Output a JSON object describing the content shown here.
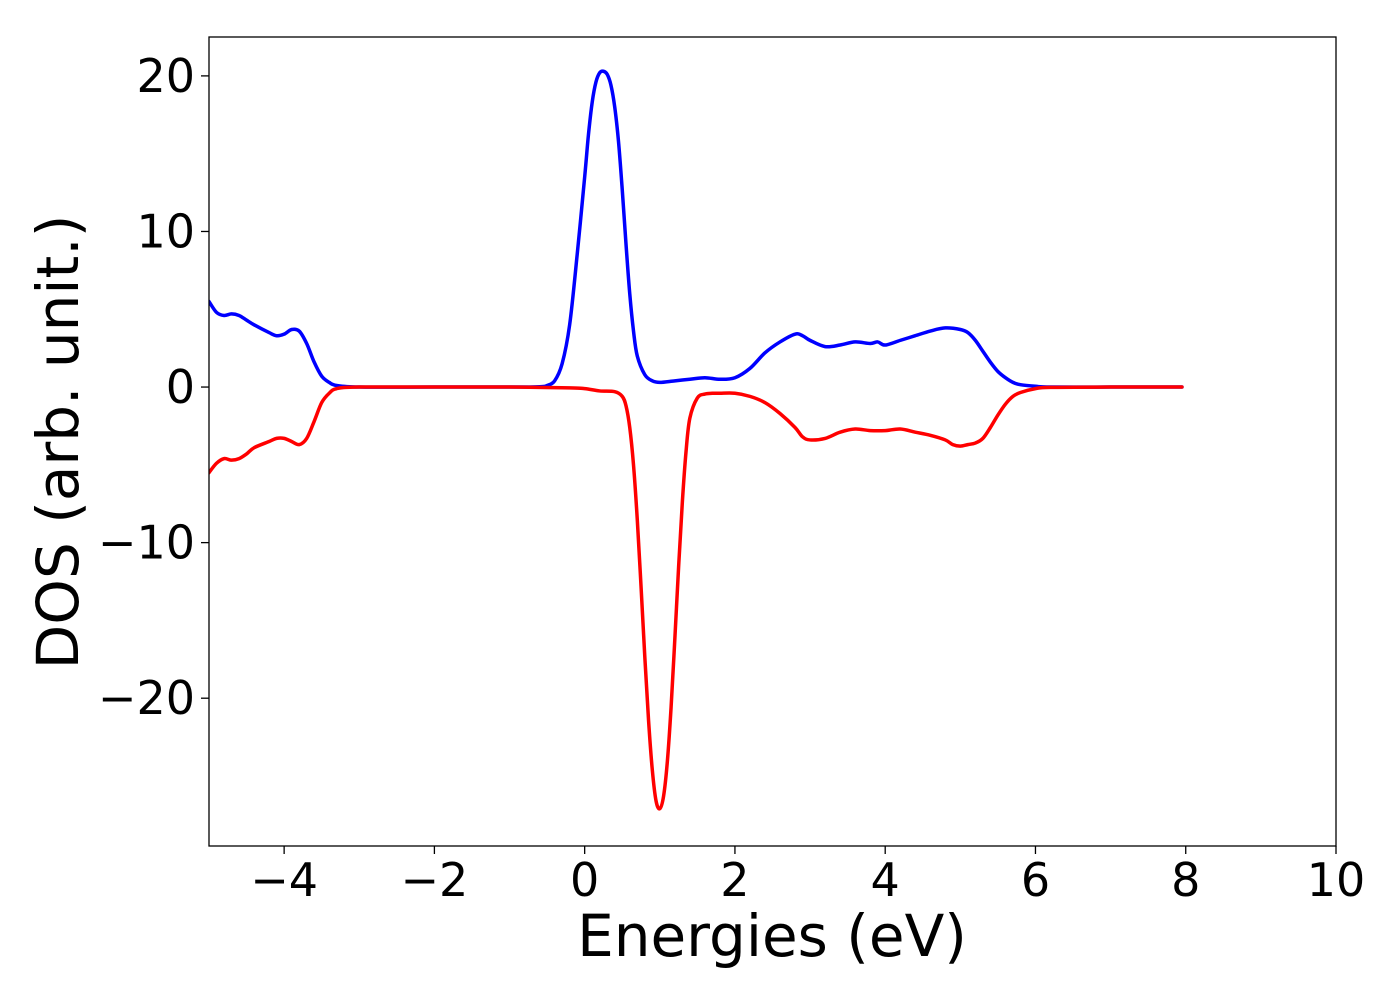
{
  "chart_data": {
    "type": "line",
    "title": "",
    "xlabel": "Energies (eV)",
    "ylabel": "DOS (arb. unit.)",
    "xlim": [
      -5,
      10
    ],
    "ylim": [
      -29.5,
      22.5
    ],
    "xticks": [
      -4,
      -2,
      0,
      2,
      4,
      6,
      8,
      10
    ],
    "xtick_labels": [
      "−4",
      "−2",
      "0",
      "2",
      "4",
      "6",
      "8",
      "10"
    ],
    "yticks": [
      20,
      10,
      0,
      -10,
      -20
    ],
    "ytick_labels": [
      "20",
      "10",
      "0",
      "−10",
      "−20"
    ],
    "grid": false,
    "legend": "none",
    "series": [
      {
        "color": "#0000ff",
        "x": [
          -5.0,
          -4.9,
          -4.8,
          -4.7,
          -4.6,
          -4.5,
          -4.4,
          -4.2,
          -4.1,
          -4.0,
          -3.9,
          -3.8,
          -3.7,
          -3.6,
          -3.5,
          -3.4,
          -3.3,
          -3.0,
          -2.0,
          -1.0,
          -0.6,
          -0.5,
          -0.4,
          -0.3,
          -0.2,
          -0.1,
          0.0,
          0.05,
          0.1,
          0.15,
          0.2,
          0.25,
          0.3,
          0.35,
          0.4,
          0.45,
          0.5,
          0.55,
          0.6,
          0.65,
          0.7,
          0.8,
          0.9,
          1.0,
          1.2,
          1.4,
          1.6,
          1.8,
          2.0,
          2.2,
          2.4,
          2.6,
          2.8,
          2.9,
          3.0,
          3.2,
          3.4,
          3.6,
          3.8,
          3.9,
          4.0,
          4.2,
          4.4,
          4.6,
          4.8,
          5.0,
          5.1,
          5.2,
          5.3,
          5.4,
          5.5,
          5.6,
          5.7,
          5.8,
          6.0,
          6.2,
          7.0,
          7.95
        ],
        "y": [
          5.5,
          4.8,
          4.6,
          4.7,
          4.6,
          4.3,
          4.0,
          3.5,
          3.3,
          3.4,
          3.7,
          3.6,
          2.8,
          1.6,
          0.7,
          0.3,
          0.1,
          0.0,
          0.0,
          0.0,
          0.02,
          0.1,
          0.4,
          1.5,
          4.0,
          8.5,
          13.5,
          16.2,
          18.3,
          19.6,
          20.2,
          20.3,
          20.1,
          19.4,
          18.0,
          15.8,
          12.7,
          9.2,
          6.0,
          3.6,
          2.0,
          0.8,
          0.4,
          0.3,
          0.4,
          0.5,
          0.6,
          0.5,
          0.6,
          1.2,
          2.2,
          2.9,
          3.4,
          3.3,
          3.0,
          2.6,
          2.7,
          2.9,
          2.8,
          2.9,
          2.7,
          3.0,
          3.3,
          3.6,
          3.8,
          3.7,
          3.5,
          3.0,
          2.3,
          1.6,
          1.0,
          0.6,
          0.3,
          0.15,
          0.05,
          0.0,
          0.0,
          0.0
        ]
      },
      {
        "color": "#ff0000",
        "x": [
          -5.0,
          -4.9,
          -4.8,
          -4.7,
          -4.6,
          -4.5,
          -4.4,
          -4.2,
          -4.1,
          -4.0,
          -3.9,
          -3.8,
          -3.7,
          -3.6,
          -3.5,
          -3.4,
          -3.3,
          -3.0,
          -2.0,
          -1.0,
          -0.2,
          0.0,
          0.2,
          0.4,
          0.5,
          0.55,
          0.6,
          0.65,
          0.7,
          0.75,
          0.8,
          0.85,
          0.9,
          0.95,
          1.0,
          1.05,
          1.1,
          1.15,
          1.2,
          1.25,
          1.3,
          1.35,
          1.4,
          1.5,
          1.6,
          1.7,
          1.8,
          2.0,
          2.2,
          2.4,
          2.6,
          2.8,
          2.9,
          3.0,
          3.2,
          3.4,
          3.6,
          3.8,
          4.0,
          4.2,
          4.4,
          4.6,
          4.8,
          4.9,
          5.0,
          5.1,
          5.2,
          5.3,
          5.4,
          5.5,
          5.6,
          5.7,
          5.8,
          6.0,
          6.2,
          7.0,
          7.95
        ],
        "y": [
          -5.5,
          -4.9,
          -4.6,
          -4.7,
          -4.6,
          -4.3,
          -3.9,
          -3.5,
          -3.3,
          -3.3,
          -3.5,
          -3.7,
          -3.3,
          -2.2,
          -1.0,
          -0.4,
          -0.1,
          0.0,
          0.0,
          0.0,
          -0.05,
          -0.1,
          -0.25,
          -0.3,
          -0.6,
          -1.2,
          -2.6,
          -5.0,
          -8.5,
          -12.8,
          -17.3,
          -21.4,
          -24.6,
          -26.6,
          -27.1,
          -26.3,
          -24.1,
          -20.6,
          -16.2,
          -11.6,
          -7.4,
          -4.1,
          -2.0,
          -0.7,
          -0.45,
          -0.4,
          -0.4,
          -0.4,
          -0.6,
          -1.0,
          -1.7,
          -2.6,
          -3.2,
          -3.4,
          -3.3,
          -2.9,
          -2.7,
          -2.8,
          -2.8,
          -2.7,
          -2.9,
          -3.1,
          -3.4,
          -3.7,
          -3.8,
          -3.7,
          -3.6,
          -3.3,
          -2.6,
          -1.8,
          -1.1,
          -0.6,
          -0.35,
          -0.1,
          -0.02,
          0.0,
          0.0
        ]
      }
    ]
  }
}
